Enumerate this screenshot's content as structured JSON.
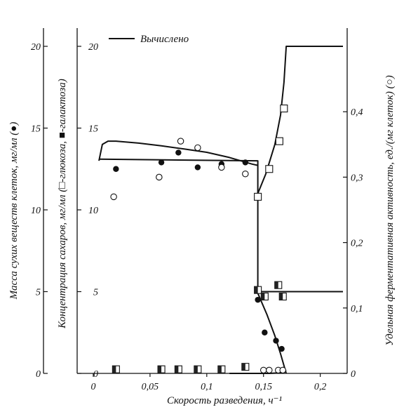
{
  "chart_data": {
    "type": "scatter",
    "xlabel": "Скорость разведения, ч⁻¹",
    "ylabel_left_outer": "Масса сухих веществ клеток, мг/мл (●)",
    "ylabel_left_inner": "Концентрация сахаров, мг/мл (□-глюкоза, ■-галактоза)",
    "ylabel_right": "Удельная ферментативная активность, ед./(мг клеток) (○)",
    "xlim": [
      0,
      0.22
    ],
    "ylim_outer": [
      0,
      20
    ],
    "ylim_inner": [
      0,
      20
    ],
    "ylim_right": [
      0,
      0.5
    ],
    "x_ticks": [
      "0",
      "0,05",
      "0,1",
      "0,15",
      "0,2"
    ],
    "y_ticks_outer": [
      "0",
      "5",
      "10",
      "15",
      "20"
    ],
    "y_ticks_inner": [
      "0",
      "5",
      "10",
      "15",
      "20"
    ],
    "y_ticks_right": [
      "0",
      "0,1",
      "0,2",
      "0,3",
      "0,4"
    ],
    "legend": {
      "line_label": "Вычислено",
      "placement": "top-left"
    },
    "series": [
      {
        "name": "Масса сухих веществ клеток",
        "marker": "filled-circle",
        "axis": "left",
        "x": [
          0.02,
          0.06,
          0.075,
          0.092,
          0.113,
          0.134,
          0.145,
          0.151,
          0.161,
          0.166
        ],
        "y": [
          12.5,
          12.9,
          13.5,
          12.6,
          12.8,
          12.9,
          4.5,
          2.5,
          2.0,
          1.5
        ]
      },
      {
        "name": "Удельная ферментативная активность",
        "marker": "open-circle",
        "axis": "right",
        "x": [
          0.018,
          0.058,
          0.077,
          0.092,
          0.113,
          0.134,
          0.15,
          0.155,
          0.163,
          0.167
        ],
        "y": [
          0.27,
          0.3,
          0.355,
          0.345,
          0.315,
          0.305,
          0.005,
          0.005,
          0.005,
          0.005
        ]
      },
      {
        "name": "Глюкоза",
        "marker": "open-square",
        "axis": "inner",
        "x": [
          0.145,
          0.155,
          0.164,
          0.168
        ],
        "y": [
          10.8,
          12.5,
          14.2,
          16.2
        ]
      },
      {
        "name": "Галактоза",
        "marker": "half-filled-square",
        "axis": "inner",
        "x": [
          0.02,
          0.06,
          0.075,
          0.092,
          0.113,
          0.134,
          0.145,
          0.151,
          0.163,
          0.167
        ],
        "y": [
          0.25,
          0.25,
          0.25,
          0.25,
          0.25,
          0.4,
          5.1,
          4.7,
          5.4,
          4.7
        ]
      }
    ],
    "calculated_curves": [
      {
        "name": "Масса клеток (расчёт)",
        "axis": "left",
        "x": [
          0.005,
          0.145,
          0.145,
          0.153,
          0.16,
          0.165,
          0.17
        ],
        "y": [
          13.1,
          13.0,
          4.9,
          3.6,
          2.3,
          1.2,
          0.0
        ]
      },
      {
        "name": "Ферментативная активность (расчёт)",
        "axis": "right",
        "x": [
          0.005,
          0.008,
          0.013,
          0.02,
          0.04,
          0.06,
          0.08,
          0.1,
          0.12,
          0.14,
          0.145
        ],
        "y": [
          0.325,
          0.35,
          0.355,
          0.355,
          0.352,
          0.348,
          0.343,
          0.338,
          0.33,
          0.32,
          0.318
        ]
      },
      {
        "name": "Ферментативная активность (расчёт, после вымывания)",
        "axis": "right",
        "x": [
          0.12,
          0.14,
          0.155,
          0.165,
          0.17
        ],
        "y": [
          0.0,
          0.0,
          0.0,
          0.001,
          0.005
        ]
      },
      {
        "name": "Глюкоза (расчёт)",
        "axis": "inner",
        "x": [
          0.145,
          0.152,
          0.16,
          0.165,
          0.168,
          0.17,
          0.22
        ],
        "y": [
          11.0,
          12.2,
          14.0,
          15.8,
          17.8,
          20.0,
          20.0
        ]
      },
      {
        "name": "Галактоза (расчёт)",
        "axis": "inner",
        "x": [
          0.143,
          0.22
        ],
        "y": [
          5.0,
          5.0
        ]
      }
    ]
  }
}
